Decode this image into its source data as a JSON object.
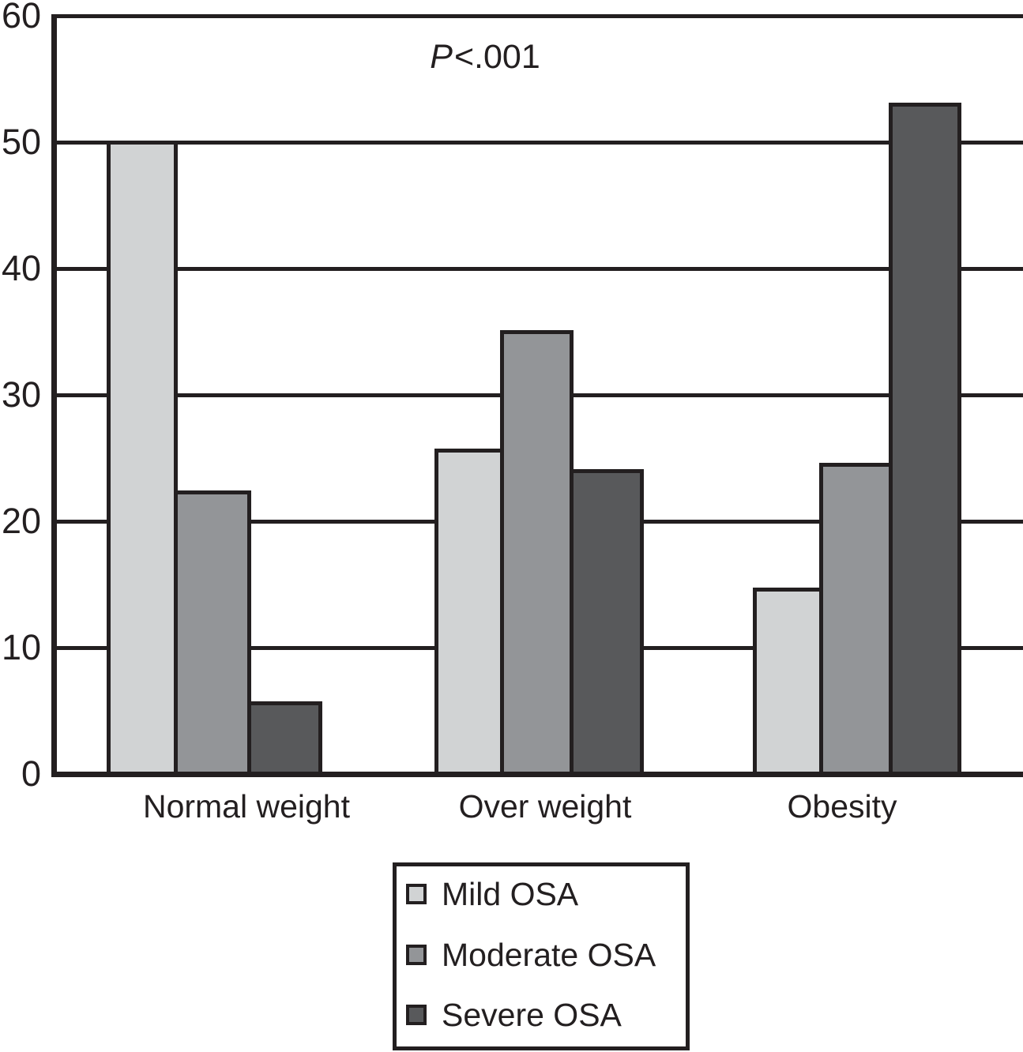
{
  "figure": {
    "background": "#ffffff",
    "line_color": "#231f20",
    "text_color": "#231f20"
  },
  "chart_data": {
    "type": "bar",
    "title": "",
    "xlabel": "",
    "ylabel": "",
    "p_value": {
      "italic": "P",
      "rest": "<.001",
      "full": "P<.001"
    },
    "categories": [
      "Normal weight",
      "Over weight",
      "Obesity"
    ],
    "series": [
      {
        "name": "Mild OSA",
        "color": "#d1d3d4",
        "values": [
          50,
          25.6,
          14.6
        ]
      },
      {
        "name": "Moderate OSA",
        "color": "#939598",
        "values": [
          22.3,
          35,
          24.5
        ]
      },
      {
        "name": "Severe OSA",
        "color": "#58595b",
        "values": [
          5.6,
          24,
          53
        ]
      }
    ],
    "ylim": [
      0,
      60
    ],
    "y_ticks": [
      0,
      10,
      20,
      30,
      40,
      50,
      60
    ],
    "grid": "horizontal",
    "legend": {
      "position": "bottom-center",
      "entries": [
        "Mild OSA",
        "Moderate OSA",
        "Severe OSA"
      ]
    }
  }
}
